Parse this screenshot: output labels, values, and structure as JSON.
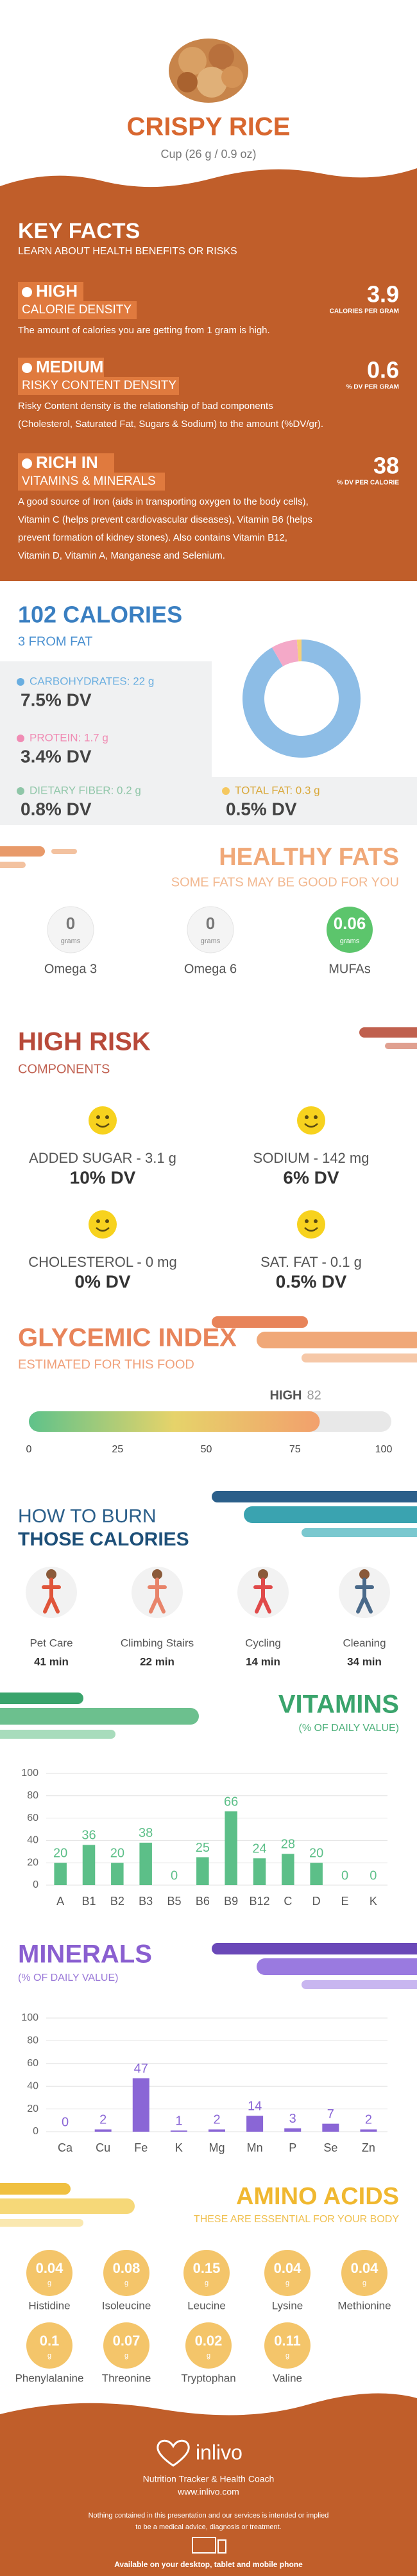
{
  "header": {
    "title": "CRISPY RICE",
    "serving": "Cup (26 g / 0.9 oz)"
  },
  "key_facts": {
    "title": "KEY FACTS",
    "subtitle": "LEARN ABOUT HEALTH BENEFITS OR RISKS",
    "facts": [
      {
        "level": "HIGH",
        "label": "CALORIE DENSITY",
        "value": 3.9,
        "unit": "CALORIES PER GRAM",
        "description": [
          "The amount of calories you are getting from 1 gram is high."
        ]
      },
      {
        "level": "MEDIUM",
        "label": "RISKY CONTENT DENSITY",
        "value": 0.6,
        "unit": "% DV PER GRAM",
        "description": [
          "Risky Content density is the relationship of bad components",
          "(Cholesterol, Saturated Fat, Sugars & Sodium) to the amount (%DV/gr)."
        ]
      },
      {
        "level": "RICH IN",
        "label": "VITAMINS & MINERALS",
        "value": 38,
        "unit": "% DV PER CALORIE",
        "description": [
          "A good source of Iron (aids in transporting oxygen to the body cells),",
          "Vitamin C (helps prevent cardiovascular diseases), Vitamin B6 (helps",
          "prevent formation of kidney stones). Also contains Vitamin B12,",
          "Vitamin D, Vitamin A, Manganese and Selenium."
        ]
      }
    ]
  },
  "calories": {
    "title": "102 CALORIES",
    "subtitle": "3 FROM FAT",
    "nutrients": [
      {
        "label": "CARBOHYDRATES: 22 g",
        "dv": "7.5% DV",
        "color": "#6aaee0"
      },
      {
        "label": "PROTEIN: 1.7 g",
        "dv": "3.4% DV",
        "color": "#f08cb4"
      },
      {
        "label": "DIETARY FIBER: 0.2 g",
        "dv": "0.8% DV",
        "color": "#8fc6a8"
      },
      {
        "label": "TOTAL FAT: 0.3 g",
        "dv": "0.5% DV",
        "color": "#f5c860"
      }
    ]
  },
  "chart_data": [
    {
      "type": "pie",
      "values": [
        22,
        1.7,
        0.3
      ],
      "colors": [
        "#8dbde6",
        "#f4a9c8",
        "#f5d07a"
      ]
    },
    {
      "type": "bar",
      "title": "VITAMINS",
      "subtitle": "(% OF DAILY VALUE)",
      "categories": [
        "A",
        "B1",
        "B2",
        "B3",
        "B5",
        "B6",
        "B9",
        "B12",
        "C",
        "D",
        "E",
        "K"
      ],
      "values": [
        20,
        36,
        20,
        38,
        0,
        25,
        66,
        24,
        28,
        20,
        0,
        0
      ],
      "color": "#5cbf88",
      "ylim": [
        0,
        100
      ],
      "yticks": [
        0,
        20,
        40,
        60,
        80,
        100
      ],
      "grid": true
    },
    {
      "type": "bar",
      "title": "MINERALS",
      "subtitle": "(% OF DAILY VALUE)",
      "categories": [
        "Ca",
        "Cu",
        "Fe",
        "K",
        "Mg",
        "Mn",
        "P",
        "Se",
        "Zn"
      ],
      "values": [
        0,
        2,
        47,
        1,
        2,
        14,
        3,
        7,
        2
      ],
      "color": "#8a66d6",
      "ylim": [
        0,
        100
      ],
      "yticks": [
        0,
        20,
        40,
        60,
        80,
        100
      ],
      "grid": true
    }
  ],
  "healthy_fats": {
    "title": "HEALTHY FATS",
    "subtitle": "SOME FATS MAY BE GOOD FOR YOU",
    "unit": "grams",
    "items": [
      {
        "name": "Omega 3",
        "value": 0
      },
      {
        "name": "Omega 6",
        "value": 0
      },
      {
        "name": "MUFAs",
        "value": 0.06
      }
    ]
  },
  "high_risk": {
    "title": "HIGH RISK",
    "subtitle": "COMPONENTS",
    "items": [
      {
        "label": "ADDED SUGAR - 3.1 g",
        "dv": "10% DV"
      },
      {
        "label": "SODIUM - 142 mg",
        "dv": "6% DV"
      },
      {
        "label": "CHOLESTEROL - 0 mg",
        "dv": "0% DV"
      },
      {
        "label": "SAT. FAT - 0.1 g",
        "dv": "0.5% DV"
      }
    ]
  },
  "glycemic_index": {
    "title": "GLYCEMIC INDEX",
    "subtitle": "ESTIMATED FOR THIS FOOD",
    "level": "HIGH",
    "value": 82,
    "xlim": [
      0,
      100
    ],
    "xticks": [
      0,
      25,
      50,
      75,
      100
    ]
  },
  "burn": {
    "title": [
      "HOW TO BURN",
      "THOSE CALORIES"
    ],
    "activities": [
      {
        "name": "Pet Care",
        "time": "41 min"
      },
      {
        "name": "Climbing Stairs",
        "time": "22 min"
      },
      {
        "name": "Cycling",
        "time": "14 min"
      },
      {
        "name": "Cleaning",
        "time": "34 min"
      }
    ]
  },
  "amino_acids": {
    "title": "AMINO ACIDS",
    "subtitle": "THESE ARE ESSENTIAL FOR YOUR BODY",
    "unit": "g",
    "items": [
      {
        "name": "Histidine",
        "value": 0.04
      },
      {
        "name": "Isoleucine",
        "value": 0.08
      },
      {
        "name": "Leucine",
        "value": 0.15
      },
      {
        "name": "Lysine",
        "value": 0.04
      },
      {
        "name": "Methionine",
        "value": 0.04
      },
      {
        "name": "Phenylalanine",
        "value": 0.1
      },
      {
        "name": "Threonine",
        "value": 0.07
      },
      {
        "name": "Tryptophan",
        "value": 0.02
      },
      {
        "name": "Valine",
        "value": 0.11
      }
    ]
  },
  "footer": {
    "brand": "inlivo",
    "tagline": "Nutrition Tracker & Health Coach",
    "url": "www.inlivo.com",
    "disclaimer": [
      "Nothing contained in this presentation and our services is intended or implied",
      "to be a medical advice, diagnosis or treatment."
    ],
    "availability": "Available on your desktop, tablet and mobile phone"
  }
}
